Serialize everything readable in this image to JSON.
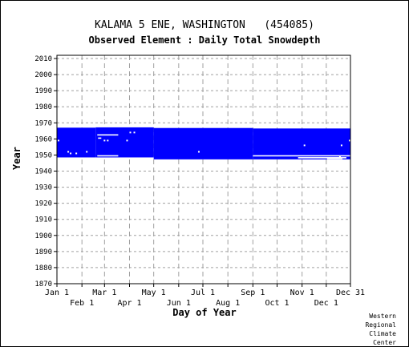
{
  "page": {
    "title": "KALAMA 5 ENE, WASHINGTON   (454085)",
    "subtitle": "Observed Element : Daily Total Snowdepth",
    "credit": [
      "Western",
      "Regional",
      "Climate",
      "Center"
    ]
  },
  "chart_data": {
    "type": "heatmap",
    "title": "KALAMA 5 ENE, WASHINGTON   (454085)",
    "subtitle": "Observed Element : Daily Total Snowdepth",
    "xlabel": "Day of Year",
    "ylabel": "Year",
    "xlim": [
      1,
      365
    ],
    "ylim": [
      1870,
      2012
    ],
    "y_ticks": [
      1870,
      1880,
      1890,
      1900,
      1910,
      1920,
      1930,
      1940,
      1950,
      1960,
      1970,
      1980,
      1990,
      2000,
      2010
    ],
    "x_ticks_top_row": [
      {
        "label": "Jan 1",
        "day": 1
      },
      {
        "label": "Mar 1",
        "day": 60
      },
      {
        "label": "May 1",
        "day": 121
      },
      {
        "label": "Jul 1",
        "day": 182
      },
      {
        "label": "Sep 1",
        "day": 244
      },
      {
        "label": "Nov 1",
        "day": 305
      },
      {
        "label": "Dec 31",
        "day": 365
      }
    ],
    "x_ticks_bottom_row": [
      {
        "label": "Feb 1",
        "day": 32
      },
      {
        "label": "Apr 1",
        "day": 91
      },
      {
        "label": "Jun 1",
        "day": 152
      },
      {
        "label": "Aug 1",
        "day": 213
      },
      {
        "label": "Oct 1",
        "day": 274
      },
      {
        "label": "Dec 1",
        "day": 335
      }
    ],
    "grid": true,
    "data_color": "#0000ff",
    "coverage_blocks": [
      {
        "day_start": 1,
        "day_end": 49,
        "year_start": 1948.5,
        "year_end": 1967.0
      },
      {
        "day_start": 49,
        "day_end": 121,
        "year_start": 1948.5,
        "year_end": 1967.2
      },
      {
        "day_start": 121,
        "day_end": 244,
        "year_start": 1947.3,
        "year_end": 1966.8
      },
      {
        "day_start": 244,
        "day_end": 365,
        "year_start": 1947.3,
        "year_end": 1966.5
      }
    ],
    "missing_segments": [
      {
        "day_start": 51,
        "day_end": 77,
        "year": 1962.5
      },
      {
        "day_start": 51,
        "day_end": 77,
        "year": 1949.5
      },
      {
        "day_start": 52,
        "day_end": 56,
        "year": 1960.5
      },
      {
        "day_start": 244,
        "day_end": 365,
        "year": 1949.5
      },
      {
        "day_start": 300,
        "day_end": 360,
        "year": 1948.3
      },
      {
        "day_start": 336,
        "day_end": 355,
        "year": 1947.8
      }
    ],
    "missing_points": [
      {
        "day": 3,
        "year": 1959
      },
      {
        "day": 15,
        "year": 1952
      },
      {
        "day": 18,
        "year": 1951
      },
      {
        "day": 25,
        "year": 1951
      },
      {
        "day": 38,
        "year": 1952
      },
      {
        "day": 60,
        "year": 1959
      },
      {
        "day": 64,
        "year": 1959
      },
      {
        "day": 88,
        "year": 1959
      },
      {
        "day": 92,
        "year": 1964
      },
      {
        "day": 97,
        "year": 1964
      },
      {
        "day": 177,
        "year": 1952
      },
      {
        "day": 308,
        "year": 1956
      },
      {
        "day": 352,
        "year": 1949
      },
      {
        "day": 354,
        "year": 1956
      },
      {
        "day": 364,
        "year": 1959
      }
    ]
  }
}
